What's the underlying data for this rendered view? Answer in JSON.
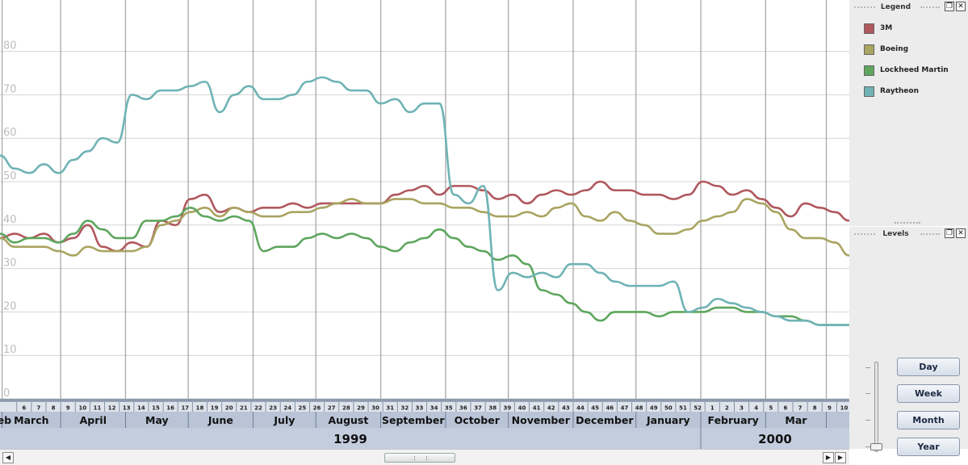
{
  "chart_data": {
    "type": "line",
    "ylim": [
      0,
      86
    ],
    "yticks": [
      0,
      10,
      20,
      30,
      40,
      50,
      60,
      70,
      80
    ],
    "ytick_labels": [
      "0",
      "10",
      "20",
      "30",
      "40",
      "50",
      "60",
      "70",
      "80"
    ],
    "x_start": "1999-01-31",
    "x_end": "2000-03-12",
    "series": [
      {
        "name": "3M",
        "color": "#b0585e",
        "x": [
          "1999-01-31",
          "1999-02-07",
          "1999-02-14",
          "1999-02-21",
          "1999-02-28",
          "1999-03-07",
          "1999-03-14",
          "1999-03-21",
          "1999-03-28",
          "1999-04-04",
          "1999-04-11",
          "1999-04-18",
          "1999-04-25",
          "1999-05-02",
          "1999-05-09",
          "1999-05-16",
          "1999-05-23",
          "1999-05-30",
          "1999-06-06",
          "1999-06-13",
          "1999-06-20",
          "1999-06-27",
          "1999-07-04",
          "1999-07-11",
          "1999-07-18",
          "1999-07-25",
          "1999-08-01",
          "1999-08-08",
          "1999-08-15",
          "1999-08-22",
          "1999-08-29",
          "1999-09-05",
          "1999-09-12",
          "1999-09-19",
          "1999-09-26",
          "1999-10-03",
          "1999-10-10",
          "1999-10-17",
          "1999-10-24",
          "1999-10-31",
          "1999-11-07",
          "1999-11-14",
          "1999-11-21",
          "1999-11-28",
          "1999-12-05",
          "1999-12-12",
          "1999-12-19",
          "1999-12-26",
          "2000-01-02",
          "2000-01-09",
          "2000-01-16",
          "2000-01-23",
          "2000-01-30",
          "2000-02-06",
          "2000-02-13",
          "2000-02-20",
          "2000-02-27",
          "2000-03-05",
          "2000-03-12"
        ],
        "y": [
          37,
          38,
          37,
          38,
          36,
          37,
          40,
          35,
          34,
          36,
          35,
          41,
          40,
          46,
          47,
          43,
          44,
          43,
          44,
          44,
          45,
          44,
          45,
          45,
          45,
          45,
          45,
          47,
          48,
          49,
          47,
          49,
          49,
          48,
          46,
          47,
          45,
          47,
          48,
          47,
          48,
          50,
          48,
          48,
          47,
          47,
          46,
          47,
          50,
          49,
          47,
          48,
          46,
          44,
          42,
          45,
          44,
          43,
          41
        ]
      },
      {
        "name": "Boeing",
        "color": "#a9a461",
        "x": [
          "1999-01-31",
          "1999-02-07",
          "1999-02-14",
          "1999-02-21",
          "1999-02-28",
          "1999-03-07",
          "1999-03-14",
          "1999-03-21",
          "1999-03-28",
          "1999-04-04",
          "1999-04-11",
          "1999-04-18",
          "1999-04-25",
          "1999-05-02",
          "1999-05-09",
          "1999-05-16",
          "1999-05-23",
          "1999-05-30",
          "1999-06-06",
          "1999-06-13",
          "1999-06-20",
          "1999-06-27",
          "1999-07-04",
          "1999-07-11",
          "1999-07-18",
          "1999-07-25",
          "1999-08-01",
          "1999-08-08",
          "1999-08-15",
          "1999-08-22",
          "1999-08-29",
          "1999-09-05",
          "1999-09-12",
          "1999-09-19",
          "1999-09-26",
          "1999-10-03",
          "1999-10-10",
          "1999-10-17",
          "1999-10-24",
          "1999-10-31",
          "1999-11-07",
          "1999-11-14",
          "1999-11-21",
          "1999-11-28",
          "1999-12-05",
          "1999-12-12",
          "1999-12-19",
          "1999-12-26",
          "2000-01-02",
          "2000-01-09",
          "2000-01-16",
          "2000-01-23",
          "2000-01-30",
          "2000-02-06",
          "2000-02-13",
          "2000-02-20",
          "2000-02-27",
          "2000-03-05",
          "2000-03-12"
        ],
        "y": [
          37,
          35,
          35,
          35,
          34,
          33,
          35,
          34,
          34,
          34,
          35,
          40,
          41,
          43,
          44,
          42,
          44,
          43,
          42,
          42,
          43,
          43,
          44,
          45,
          46,
          45,
          45,
          46,
          46,
          45,
          45,
          44,
          44,
          43,
          42,
          42,
          43,
          42,
          44,
          45,
          42,
          41,
          43,
          41,
          40,
          38,
          38,
          39,
          41,
          42,
          43,
          46,
          45,
          43,
          39,
          37,
          37,
          36,
          33
        ]
      },
      {
        "name": "Lockheed Martin",
        "color": "#5ea65e",
        "x": [
          "1999-01-31",
          "1999-02-07",
          "1999-02-14",
          "1999-02-21",
          "1999-02-28",
          "1999-03-07",
          "1999-03-14",
          "1999-03-21",
          "1999-03-28",
          "1999-04-04",
          "1999-04-11",
          "1999-04-18",
          "1999-04-25",
          "1999-05-02",
          "1999-05-09",
          "1999-05-16",
          "1999-05-23",
          "1999-05-30",
          "1999-06-06",
          "1999-06-13",
          "1999-06-20",
          "1999-06-27",
          "1999-07-04",
          "1999-07-11",
          "1999-07-18",
          "1999-07-25",
          "1999-08-01",
          "1999-08-08",
          "1999-08-15",
          "1999-08-22",
          "1999-08-29",
          "1999-09-05",
          "1999-09-12",
          "1999-09-19",
          "1999-09-26",
          "1999-10-03",
          "1999-10-10",
          "1999-10-17",
          "1999-10-24",
          "1999-10-31",
          "1999-11-07",
          "1999-11-14",
          "1999-11-21",
          "1999-11-28",
          "1999-12-05",
          "1999-12-12",
          "1999-12-19",
          "1999-12-26",
          "2000-01-02",
          "2000-01-09",
          "2000-01-16",
          "2000-01-23",
          "2000-01-30",
          "2000-02-06",
          "2000-02-13",
          "2000-02-20",
          "2000-02-27",
          "2000-03-05",
          "2000-03-12"
        ],
        "y": [
          38,
          36,
          37,
          37,
          36,
          38,
          41,
          39,
          37,
          37,
          41,
          41,
          42,
          44,
          42,
          41,
          42,
          41,
          34,
          35,
          35,
          37,
          38,
          37,
          38,
          37,
          35,
          34,
          36,
          37,
          39,
          37,
          35,
          34,
          32,
          33,
          31,
          25,
          24,
          22,
          20,
          18,
          20,
          20,
          20,
          19,
          20,
          20,
          20,
          21,
          21,
          20,
          20,
          19,
          19,
          18,
          17,
          17,
          17
        ]
      },
      {
        "name": "Raytheon",
        "color": "#6fb3b5",
        "x": [
          "1999-01-31",
          "1999-02-07",
          "1999-02-14",
          "1999-02-21",
          "1999-02-28",
          "1999-03-07",
          "1999-03-14",
          "1999-03-21",
          "1999-03-28",
          "1999-04-04",
          "1999-04-11",
          "1999-04-18",
          "1999-04-25",
          "1999-05-02",
          "1999-05-09",
          "1999-05-16",
          "1999-05-23",
          "1999-05-30",
          "1999-06-06",
          "1999-06-13",
          "1999-06-20",
          "1999-06-27",
          "1999-07-04",
          "1999-07-11",
          "1999-07-18",
          "1999-07-25",
          "1999-08-01",
          "1999-08-08",
          "1999-08-15",
          "1999-08-22",
          "1999-08-29",
          "1999-09-05",
          "1999-09-12",
          "1999-09-19",
          "1999-09-26",
          "1999-10-03",
          "1999-10-10",
          "1999-10-17",
          "1999-10-24",
          "1999-10-31",
          "1999-11-07",
          "1999-11-14",
          "1999-11-21",
          "1999-11-28",
          "1999-12-05",
          "1999-12-12",
          "1999-12-19",
          "1999-12-26",
          "2000-01-02",
          "2000-01-09",
          "2000-01-16",
          "2000-01-23",
          "2000-01-30",
          "2000-02-06",
          "2000-02-13",
          "2000-02-20",
          "2000-02-27",
          "2000-03-05",
          "2000-03-12"
        ],
        "y": [
          56,
          53,
          52,
          54,
          52,
          55,
          57,
          60,
          59,
          70,
          69,
          71,
          71,
          72,
          73,
          66,
          70,
          72,
          69,
          69,
          70,
          73,
          74,
          73,
          71,
          71,
          68,
          69,
          66,
          68,
          68,
          47,
          45,
          49,
          25,
          29,
          28,
          29,
          28,
          31,
          31,
          29,
          27,
          26,
          26,
          26,
          27,
          20,
          21,
          23,
          22,
          21,
          20,
          19,
          18,
          18,
          17,
          17,
          17
        ]
      }
    ]
  },
  "time_axis": {
    "weeks": [
      "6",
      "7",
      "8",
      "9",
      "10",
      "11",
      "12",
      "13",
      "14",
      "15",
      "16",
      "17",
      "18",
      "19",
      "20",
      "21",
      "22",
      "23",
      "24",
      "25",
      "26",
      "27",
      "28",
      "29",
      "30",
      "31",
      "32",
      "33",
      "34",
      "35",
      "36",
      "37",
      "38",
      "39",
      "40",
      "41",
      "42",
      "43",
      "44",
      "45",
      "46",
      "47",
      "48",
      "49",
      "50",
      "51",
      "52",
      "1",
      "2",
      "3",
      "4",
      "5",
      "6",
      "7",
      "8",
      "9",
      "10"
    ],
    "months": [
      "Feb",
      "March",
      "April",
      "May",
      "June",
      "July",
      "August",
      "September",
      "October",
      "November",
      "December",
      "January",
      "February",
      "Mar"
    ],
    "years": [
      "1999",
      "2000"
    ]
  },
  "legend_panel": {
    "title": "Legend",
    "restore_icon": "restore-icon",
    "close_icon": "close-icon",
    "restore_glyph": "❐",
    "close_glyph": "✕",
    "items": [
      {
        "label": "3M",
        "color": "#b0585e"
      },
      {
        "label": "Boeing",
        "color": "#a9a461"
      },
      {
        "label": "Lockheed Martin",
        "color": "#5ea65e"
      },
      {
        "label": "Raytheon",
        "color": "#6fb3b5"
      }
    ]
  },
  "levels_panel": {
    "title": "Levels",
    "restore_glyph": "❐",
    "close_glyph": "✕",
    "buttons": [
      "Day",
      "Week",
      "Month",
      "Year"
    ]
  },
  "scrollbar": {
    "left_glyph": "◀",
    "right_glyph": "▶",
    "right2_glyph": "▶"
  }
}
